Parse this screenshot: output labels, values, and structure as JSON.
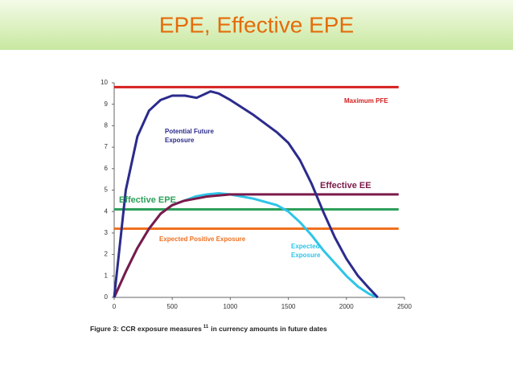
{
  "header": {
    "title": "EPE, Effective EPE"
  },
  "chart_data": {
    "type": "line",
    "xlim": [
      0,
      2500
    ],
    "xticks": [
      0,
      500,
      1000,
      1500,
      2000,
      2500
    ],
    "ylim": [
      0,
      10
    ],
    "yticks": [
      0,
      1,
      2,
      3,
      4,
      5,
      6,
      7,
      8,
      9,
      10
    ],
    "series": [
      {
        "name": "Maximum PFE",
        "color": "#d42020",
        "x": [
          0,
          2450
        ],
        "values": [
          9.8,
          9.8
        ]
      },
      {
        "name": "Potential Future Exposure",
        "color": "#2b2b8c",
        "x": [
          0,
          100,
          200,
          300,
          400,
          500,
          610,
          710,
          830,
          900,
          1000,
          1200,
          1400,
          1500,
          1600,
          1700,
          1800,
          1900,
          2000,
          2100,
          2200,
          2270
        ],
        "values": [
          0,
          5,
          7.5,
          8.7,
          9.2,
          9.4,
          9.4,
          9.3,
          9.6,
          9.5,
          9.2,
          8.5,
          7.7,
          7.2,
          6.4,
          5.3,
          4.0,
          2.8,
          1.8,
          1.0,
          0.4,
          0
        ]
      },
      {
        "name": "Effective EE",
        "color": "#7b1a4a",
        "x": [
          0,
          100,
          200,
          300,
          400,
          500,
          600,
          700,
          800,
          1000,
          2450
        ],
        "values": [
          0,
          1.2,
          2.3,
          3.2,
          3.9,
          4.3,
          4.5,
          4.6,
          4.7,
          4.8,
          4.8
        ]
      },
      {
        "name": "Effective EPE",
        "color": "#2ca05a",
        "x": [
          0,
          2450
        ],
        "values": [
          4.1,
          4.1
        ]
      },
      {
        "name": "Expected Positive Exposure",
        "color": "#f07020",
        "x": [
          0,
          2450
        ],
        "values": [
          3.2,
          3.2
        ]
      },
      {
        "name": "Expected Exposure",
        "color": "#2ec4e8",
        "x": [
          0,
          100,
          200,
          300,
          400,
          500,
          600,
          700,
          800,
          900,
          1000,
          1200,
          1400,
          1500,
          1600,
          1700,
          1800,
          1900,
          2000,
          2100,
          2200,
          2270
        ],
        "values": [
          0,
          1.2,
          2.3,
          3.2,
          3.9,
          4.3,
          4.5,
          4.7,
          4.8,
          4.85,
          4.8,
          4.6,
          4.3,
          4.0,
          3.5,
          2.9,
          2.2,
          1.6,
          1.0,
          0.5,
          0.15,
          0
        ]
      }
    ],
    "caption": "Figure 3: CCR exposure measures",
    "caption_superscript": "11",
    "caption_end": "in currency amounts in future dates"
  }
}
